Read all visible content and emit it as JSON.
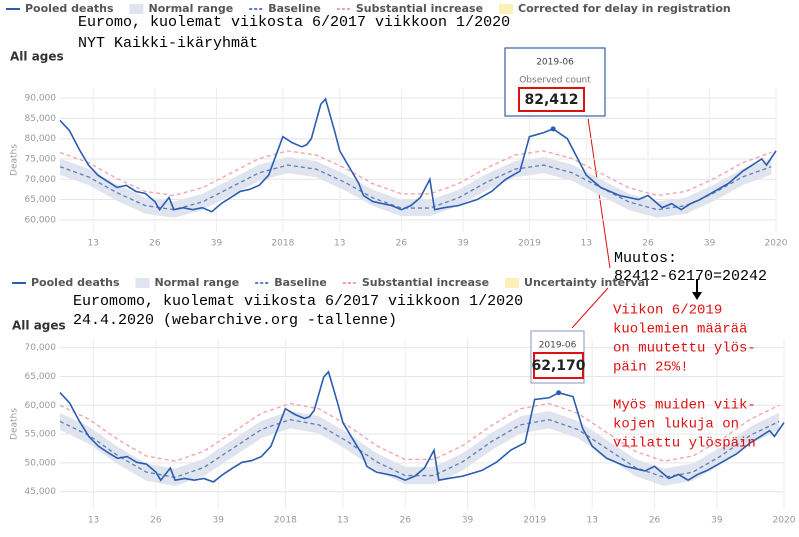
{
  "chart_data": [
    {
      "type": "line",
      "title": [
        "Euromo, kuolemat viikosta 6/2017 viikkoon 1/2020",
        "NYT        Kaikki-ikäryhmät"
      ],
      "subtitle": "All ages",
      "ylabel": "Deaths",
      "xlim": [
        6,
        157
      ],
      "ylim": [
        57000,
        92500
      ],
      "xticks": [
        13,
        26,
        39,
        {
          "value": 53,
          "label": "2018"
        },
        {
          "value": 65,
          "label": "13"
        },
        {
          "value": 78,
          "label": "26"
        },
        {
          "value": 91,
          "label": "39"
        },
        {
          "value": 105,
          "label": "2019"
        },
        {
          "value": 117,
          "label": "13"
        },
        {
          "value": 130,
          "label": "26"
        },
        {
          "value": 143,
          "label": "39"
        },
        {
          "value": 157,
          "label": "2020"
        }
      ],
      "yticks": [
        {
          "value": 60000,
          "label": "60,000"
        },
        {
          "value": 65000,
          "label": "65,000"
        },
        {
          "value": 70000,
          "label": "70,000"
        },
        {
          "value": 75000,
          "label": "75,000"
        },
        {
          "value": 80000,
          "label": "80,000"
        },
        {
          "value": 85000,
          "label": "85,000"
        },
        {
          "value": 90000,
          "label": "90,000"
        }
      ],
      "grid": true,
      "series": [
        {
          "name": "Normal range",
          "style": "band",
          "color": "#dfe4ee",
          "x": [
            6,
            12,
            18,
            24,
            30,
            36,
            42,
            48,
            54,
            60,
            66,
            72,
            78,
            84,
            90,
            96,
            102,
            108,
            114,
            120,
            126,
            132,
            138,
            144,
            150,
            156
          ],
          "low": [
            71100,
            68600,
            64700,
            61500,
            60500,
            62400,
            66000,
            69600,
            71500,
            70500,
            67300,
            63400,
            60900,
            60900,
            63400,
            67300,
            70500,
            71500,
            69600,
            66000,
            62400,
            60500,
            61500,
            64700,
            68600,
            71100
          ],
          "high": [
            75100,
            72600,
            68700,
            65500,
            64500,
            66400,
            70000,
            73600,
            75500,
            74500,
            71300,
            67400,
            64900,
            64900,
            67400,
            71300,
            74500,
            75500,
            73600,
            70000,
            66400,
            64500,
            65500,
            68700,
            72600,
            75100
          ]
        },
        {
          "name": "Baseline",
          "style": "dashed",
          "color": "#5b7fbf",
          "x": [
            6,
            12,
            18,
            24,
            30,
            36,
            42,
            48,
            54,
            60,
            66,
            72,
            78,
            84,
            90,
            96,
            102,
            108,
            114,
            120,
            126,
            132,
            138,
            144,
            150,
            156
          ],
          "values": [
            73100,
            70600,
            66700,
            63500,
            62500,
            64400,
            68000,
            71600,
            73500,
            72500,
            69300,
            65400,
            62900,
            62900,
            65400,
            69300,
            72500,
            73500,
            71600,
            68000,
            64400,
            62500,
            63500,
            66700,
            70600,
            73100
          ]
        },
        {
          "name": "Substantial increase",
          "style": "dashed",
          "color": "#f2a0aa",
          "x": [
            6,
            12,
            18,
            24,
            30,
            36,
            42,
            48,
            54,
            60,
            66,
            72,
            78,
            84,
            90,
            96,
            102,
            108,
            114,
            120,
            126,
            132,
            138,
            144,
            150,
            156
          ],
          "values": [
            76600,
            74100,
            70200,
            67000,
            66000,
            67900,
            71500,
            75100,
            77000,
            76000,
            72800,
            68900,
            66400,
            66400,
            68900,
            72800,
            76000,
            77000,
            75100,
            71500,
            67900,
            66000,
            67000,
            70200,
            74100,
            76600
          ]
        },
        {
          "name": "Pooled deaths",
          "style": "line",
          "color": "#2a5db0",
          "x": [
            6,
            8,
            10,
            12,
            14,
            16,
            18,
            20,
            22,
            24,
            26,
            27,
            29,
            30,
            32,
            34,
            36,
            38,
            40,
            42,
            44,
            46,
            48,
            50,
            53,
            55,
            57,
            58,
            59,
            61,
            62,
            64,
            65,
            67,
            69,
            70,
            72,
            76,
            78,
            80,
            82,
            84,
            85,
            87,
            90,
            94,
            97,
            100,
            103,
            105,
            108,
            110,
            113,
            115,
            117,
            120,
            124,
            128,
            130,
            133,
            135,
            137,
            139,
            141,
            144,
            147,
            150,
            154,
            155,
            157
          ],
          "values": [
            84500,
            82000,
            77500,
            73500,
            71000,
            69500,
            68000,
            68500,
            67000,
            66500,
            64500,
            62500,
            65500,
            62500,
            63000,
            62500,
            63000,
            62000,
            64000,
            65500,
            67000,
            67500,
            68500,
            71000,
            80500,
            79000,
            78000,
            78500,
            80000,
            88500,
            89800,
            81500,
            77000,
            73000,
            69000,
            66000,
            64500,
            63500,
            62500,
            63500,
            65500,
            70000,
            62500,
            63000,
            63500,
            65000,
            67000,
            70000,
            72000,
            80500,
            81500,
            82412,
            80000,
            75500,
            71000,
            68000,
            66000,
            65000,
            66000,
            63000,
            64000,
            62500,
            64000,
            65000,
            67000,
            69000,
            72000,
            75000,
            73500,
            77000
          ]
        },
        {
          "name": "Corrected for delay in registration",
          "style": "swatch",
          "color": "#fbf1b8"
        }
      ],
      "legend_order": [
        3,
        0,
        1,
        2,
        4
      ],
      "tooltip": {
        "label": "2019-06",
        "caption": "Observed count",
        "value": 82412,
        "value_label": "82,412"
      }
    },
    {
      "type": "line",
      "title": [
        "Euromomo, kuolemat viikosta 6/2017 viikkoon 1/2020",
        "24.4.2020 (webarchive.org -tallenne)"
      ],
      "subtitle": "All ages",
      "ylabel": "Deaths",
      "xlim": [
        6,
        157
      ],
      "ylim": [
        42000,
        71500
      ],
      "xticks": [
        13,
        26,
        39,
        {
          "value": 53,
          "label": "2018"
        },
        {
          "value": 65,
          "label": "13"
        },
        {
          "value": 78,
          "label": "26"
        },
        {
          "value": 91,
          "label": "39"
        },
        {
          "value": 105,
          "label": "2019"
        },
        {
          "value": 117,
          "label": "13"
        },
        {
          "value": 130,
          "label": "26"
        },
        {
          "value": 143,
          "label": "39"
        },
        {
          "value": 157,
          "label": "2020"
        }
      ],
      "yticks": [
        {
          "value": 45000,
          "label": "45,000"
        },
        {
          "value": 50000,
          "label": "50,000"
        },
        {
          "value": 55000,
          "label": "55,000"
        },
        {
          "value": 60000,
          "label": "60,000"
        },
        {
          "value": 65000,
          "label": "65,000"
        },
        {
          "value": 70000,
          "label": "70,000"
        }
      ],
      "grid": true,
      "series": [
        {
          "name": "Normal range",
          "style": "band",
          "color": "#dfe4ee",
          "x": [
            6,
            12,
            18,
            24,
            30,
            36,
            42,
            48,
            54,
            60,
            66,
            72,
            78,
            84,
            90,
            96,
            102,
            108,
            114,
            120,
            126,
            132,
            138,
            144,
            150,
            156
          ],
          "low": [
            55700,
            53300,
            49800,
            46900,
            46000,
            47700,
            51000,
            54300,
            56000,
            55100,
            52200,
            48700,
            46300,
            46300,
            48700,
            52200,
            55100,
            56000,
            54300,
            51000,
            47700,
            46000,
            46900,
            49800,
            53300,
            55700
          ],
          "high": [
            58700,
            56300,
            52800,
            49900,
            49000,
            50700,
            54000,
            57300,
            59000,
            58100,
            55200,
            51700,
            49300,
            49300,
            51700,
            55200,
            58100,
            59000,
            57300,
            54000,
            50700,
            49000,
            49900,
            52800,
            56300,
            58700
          ]
        },
        {
          "name": "Baseline",
          "style": "dashed",
          "color": "#5b7fbf",
          "x": [
            6,
            12,
            18,
            24,
            30,
            36,
            42,
            48,
            54,
            60,
            66,
            72,
            78,
            84,
            90,
            96,
            102,
            108,
            114,
            120,
            126,
            132,
            138,
            144,
            150,
            156
          ],
          "values": [
            57200,
            54800,
            51300,
            48400,
            47500,
            49200,
            52500,
            55800,
            57500,
            56600,
            53700,
            50200,
            47800,
            47800,
            50200,
            53700,
            56600,
            57500,
            55800,
            52500,
            49200,
            47500,
            48400,
            51300,
            54800,
            57200
          ]
        },
        {
          "name": "Substantial increase",
          "style": "dashed",
          "color": "#f2a0aa",
          "x": [
            6,
            12,
            18,
            24,
            30,
            36,
            42,
            48,
            54,
            60,
            66,
            72,
            78,
            84,
            90,
            96,
            102,
            108,
            114,
            120,
            126,
            132,
            138,
            144,
            150,
            156
          ],
          "values": [
            60000,
            57600,
            54100,
            51200,
            50300,
            52000,
            55300,
            58600,
            60300,
            59400,
            56500,
            53000,
            50600,
            50600,
            53000,
            56500,
            59400,
            60300,
            58600,
            55300,
            52000,
            50300,
            51200,
            54100,
            57600,
            60000
          ]
        },
        {
          "name": "Pooled deaths",
          "style": "line",
          "color": "#2a5db0",
          "x": [
            6,
            8,
            10,
            12,
            14,
            16,
            18,
            20,
            22,
            24,
            26,
            27,
            29,
            30,
            32,
            34,
            36,
            38,
            40,
            42,
            44,
            46,
            48,
            50,
            53,
            55,
            57,
            58,
            59,
            61,
            62,
            64,
            65,
            67,
            69,
            70,
            72,
            76,
            78,
            80,
            82,
            84,
            85,
            87,
            90,
            94,
            97,
            100,
            103,
            105,
            108,
            110,
            113,
            115,
            117,
            120,
            124,
            128,
            130,
            133,
            135,
            137,
            139,
            141,
            144,
            147,
            150,
            154,
            155,
            157
          ],
          "values": [
            62200,
            60400,
            57300,
            54600,
            52900,
            51800,
            50800,
            51100,
            50100,
            49800,
            48400,
            47000,
            49100,
            47000,
            47300,
            47000,
            47300,
            46700,
            48000,
            49100,
            50100,
            50400,
            51100,
            52900,
            59400,
            58400,
            57700,
            58000,
            59100,
            64900,
            65800,
            60100,
            57000,
            54200,
            51500,
            49400,
            48400,
            47700,
            47000,
            47700,
            49100,
            52200,
            47000,
            47300,
            47700,
            48700,
            50100,
            52200,
            53500,
            61000,
            61300,
            62170,
            61500,
            56000,
            52900,
            50800,
            49400,
            48600,
            49400,
            47300,
            48000,
            47000,
            48000,
            48700,
            50100,
            51500,
            53500,
            55600,
            54600,
            57000
          ]
        },
        {
          "name": "Uncertainty interval",
          "style": "swatch",
          "color": "#fbf1b8"
        }
      ],
      "legend_order": [
        3,
        0,
        1,
        2,
        4
      ],
      "tooltip": {
        "label": "2019-06",
        "value": 62170,
        "value_label": "62,170"
      }
    }
  ],
  "notes": {
    "change_heading": "Muutos:",
    "change_formula": "82412-62170=20242",
    "claim": [
      "Viikon 6/2019",
      "kuolemien määrää",
      "on muutettu ylös-",
      "päin 25%!",
      "Myös muiden viik-",
      "kojen lukuja on",
      "viilattu ylöspäin"
    ]
  }
}
